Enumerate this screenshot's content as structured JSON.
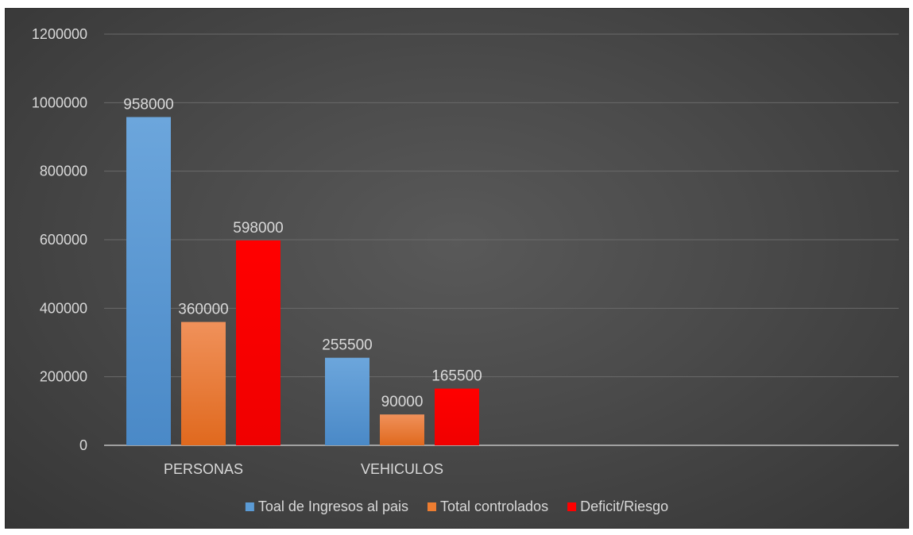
{
  "chart_data": {
    "type": "bar",
    "title": "",
    "xlabel": "",
    "ylabel": "",
    "categories": [
      "PERSONAS",
      "VEHICULOS",
      "",
      ""
    ],
    "ylim": [
      0,
      1200000
    ],
    "yticks": [
      0,
      200000,
      400000,
      600000,
      800000,
      1000000,
      1200000
    ],
    "ytick_labels": [
      "0",
      "200000",
      "400000",
      "600000",
      "800000",
      "1000000",
      "1200000"
    ],
    "grid": true,
    "legend_position": "bottom",
    "data_labels": true,
    "series": [
      {
        "name": "Toal de Ingresos al pais",
        "values": [
          958000,
          255500,
          null,
          null
        ],
        "color": "#5b9bd5"
      },
      {
        "name": "Total controlados",
        "values": [
          360000,
          90000,
          null,
          null
        ],
        "color": "#ed7d31"
      },
      {
        "name": "Deficit/Riesgo",
        "values": [
          598000,
          165500,
          null,
          null
        ],
        "color": "#ff0000"
      }
    ]
  }
}
